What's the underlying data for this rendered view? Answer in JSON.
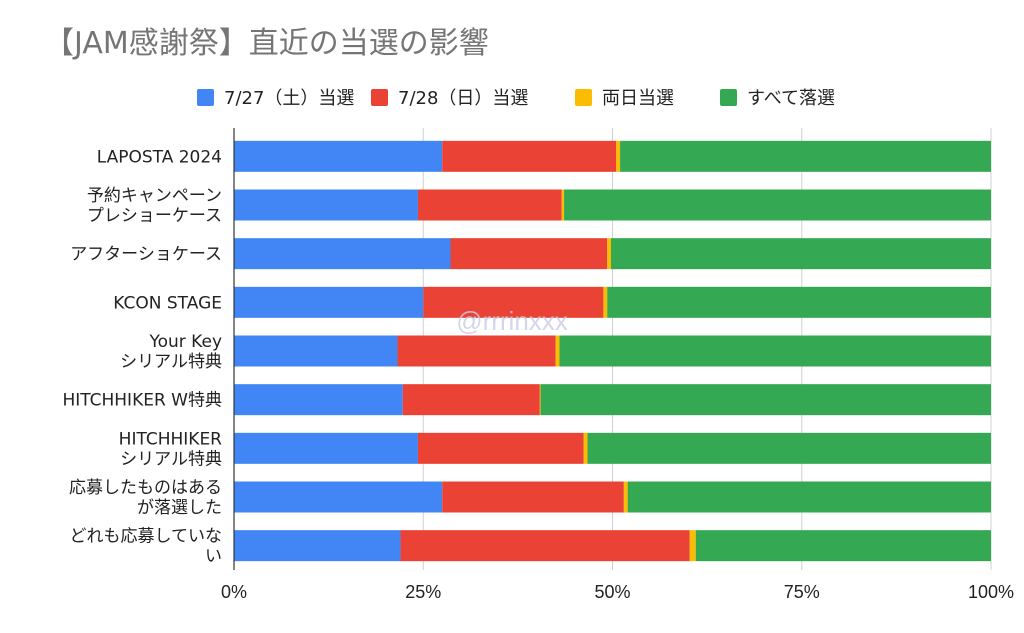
{
  "chart_data": {
    "type": "bar",
    "orientation": "horizontal",
    "stacked": "percent",
    "title": "【JAM感謝祭】直近の当選の影響",
    "legend_position": "top",
    "grid": true,
    "xlim": [
      0,
      100
    ],
    "x_ticks": [
      "0%",
      "25%",
      "50%",
      "75%",
      "100%"
    ],
    "categories": [
      [
        "LAPOSTA 2024"
      ],
      [
        "予約キャンペーン",
        "プレショーケース"
      ],
      [
        "アフターショケース"
      ],
      [
        "KCON STAGE"
      ],
      [
        "Your Key",
        "シリアル特典"
      ],
      [
        "HITCHHIKER W特典"
      ],
      [
        "HITCHHIKER",
        "シリアル特典"
      ],
      [
        "応募したものはある",
        "が落選した"
      ],
      [
        "どれも応募していな",
        "い"
      ]
    ],
    "series": [
      {
        "name": "7/27（土）当選",
        "color": "#4285f4",
        "values": [
          27.5,
          24.3,
          28.6,
          25.0,
          21.6,
          22.3,
          24.3,
          27.5,
          22.0
        ]
      },
      {
        "name": "7/28（日）当選",
        "color": "#ea4335",
        "values": [
          23.0,
          19.0,
          20.7,
          23.8,
          20.9,
          18.1,
          21.9,
          24.0,
          38.2
        ]
      },
      {
        "name": "両日当選",
        "color": "#fbbc04",
        "values": [
          0.5,
          0.3,
          0.5,
          0.5,
          0.5,
          0.1,
          0.5,
          0.5,
          0.8
        ]
      },
      {
        "name": "すべて落選",
        "color": "#34a853",
        "values": [
          49.0,
          56.4,
          50.2,
          50.7,
          57.0,
          59.5,
          53.3,
          48.0,
          39.0
        ]
      }
    ],
    "watermark": "@rrrinxxx"
  }
}
